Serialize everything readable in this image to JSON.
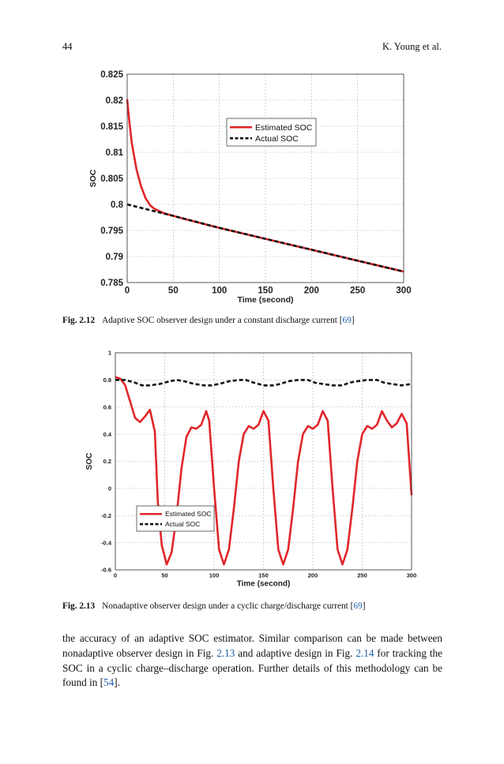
{
  "header": {
    "page_number": "44",
    "running_head": "K. Young et al."
  },
  "figures": [
    {
      "caption_label": "Fig. 2.12",
      "caption_text": "Adaptive SOC observer design under a constant discharge current [",
      "caption_ref": "69",
      "caption_end": "]"
    },
    {
      "caption_label": "Fig. 2.13",
      "caption_text": "Nonadaptive observer design under a cyclic charge/discharge current [",
      "caption_ref": "69",
      "caption_end": "]"
    }
  ],
  "chart_data": [
    {
      "type": "line",
      "xlabel": "Time (second)",
      "ylabel": "SOC",
      "xlim": [
        0,
        300
      ],
      "ylim": [
        0.785,
        0.825
      ],
      "xticks": [
        "0",
        "50",
        "100",
        "150",
        "200",
        "250",
        "300"
      ],
      "yticks": [
        "0.785",
        "0.79",
        "0.795",
        "0.8",
        "0.805",
        "0.81",
        "0.815",
        "0.82",
        "0.825"
      ],
      "grid": true,
      "legend_position": "top-right",
      "series": [
        {
          "name": "Estimated SOC",
          "color": "#e0262a",
          "style": "solid",
          "x": [
            0,
            2,
            5,
            10,
            15,
            20,
            25,
            30,
            40,
            50,
            60,
            80,
            100,
            150,
            200,
            250,
            300
          ],
          "y": [
            0.8202,
            0.8165,
            0.8118,
            0.8068,
            0.8035,
            0.8012,
            0.7998,
            0.7991,
            0.7983,
            0.7978,
            0.7973,
            0.7964,
            0.7955,
            0.7934,
            0.7913,
            0.7892,
            0.7871
          ]
        },
        {
          "name": "Actual SOC",
          "color": "#111111",
          "style": "dashed",
          "x": [
            0,
            50,
            100,
            150,
            200,
            250,
            300
          ],
          "y": [
            0.8,
            0.7978,
            0.7955,
            0.7934,
            0.7913,
            0.7892,
            0.7871
          ]
        }
      ]
    },
    {
      "type": "line",
      "xlabel": "Time (second)",
      "ylabel": "SOC",
      "xlim": [
        0,
        300
      ],
      "ylim": [
        -0.6,
        1
      ],
      "xticks": [
        "0",
        "50",
        "100",
        "150",
        "200",
        "250",
        "300"
      ],
      "yticks": [
        "-0.6",
        "-0.4",
        "-0.2",
        "0",
        "0.2",
        "0.4",
        "0.6",
        "0.8",
        "1"
      ],
      "grid": true,
      "legend_position": "bottom-left",
      "series": [
        {
          "name": "Estimated SOC",
          "color": "#e0262a",
          "style": "solid",
          "x": [
            0,
            5,
            10,
            15,
            20,
            25,
            30,
            35,
            40,
            43,
            47,
            52,
            57,
            62,
            67,
            72,
            77,
            82,
            87,
            92,
            95,
            100,
            105,
            110,
            115,
            120,
            125,
            130,
            135,
            140,
            145,
            150,
            155,
            160,
            165,
            170,
            175,
            180,
            185,
            190,
            195,
            200,
            205,
            210,
            215,
            220,
            225,
            230,
            235,
            240,
            245,
            250,
            255,
            260,
            265,
            270,
            275,
            280,
            285,
            290,
            295,
            300
          ],
          "y": [
            0.82,
            0.81,
            0.76,
            0.64,
            0.52,
            0.49,
            0.53,
            0.58,
            0.42,
            -0.1,
            -0.42,
            -0.56,
            -0.47,
            -0.2,
            0.15,
            0.38,
            0.45,
            0.44,
            0.47,
            0.57,
            0.5,
            0.0,
            -0.45,
            -0.56,
            -0.45,
            -0.15,
            0.2,
            0.4,
            0.46,
            0.44,
            0.47,
            0.57,
            0.5,
            0.0,
            -0.45,
            -0.56,
            -0.45,
            -0.15,
            0.2,
            0.4,
            0.46,
            0.44,
            0.47,
            0.57,
            0.5,
            0.0,
            -0.45,
            -0.56,
            -0.45,
            -0.15,
            0.2,
            0.4,
            0.46,
            0.44,
            0.47,
            0.57,
            0.5,
            0.45,
            0.48,
            0.55,
            0.48,
            -0.05
          ]
        },
        {
          "name": "Actual SOC",
          "color": "#111111",
          "style": "dashed",
          "x": [
            0,
            10,
            20,
            27,
            35,
            45,
            55,
            62,
            70,
            80,
            90,
            97,
            105,
            115,
            125,
            132,
            140,
            150,
            160,
            167,
            175,
            185,
            195,
            202,
            210,
            220,
            230,
            237,
            245,
            255,
            265,
            272,
            280,
            290,
            300
          ],
          "y": [
            0.8,
            0.8,
            0.78,
            0.76,
            0.76,
            0.77,
            0.79,
            0.8,
            0.79,
            0.77,
            0.76,
            0.76,
            0.77,
            0.79,
            0.8,
            0.8,
            0.78,
            0.76,
            0.76,
            0.77,
            0.79,
            0.8,
            0.8,
            0.78,
            0.77,
            0.76,
            0.76,
            0.78,
            0.79,
            0.8,
            0.8,
            0.78,
            0.77,
            0.76,
            0.77
          ]
        }
      ]
    }
  ],
  "body": {
    "p1": "the accuracy of an adaptive SOC estimator. Similar comparison can be made between nonadaptive observer design in Fig. ",
    "ref1": "2.13",
    "p2": " and adaptive design in Fig. ",
    "ref2": "2.14",
    "p3": " for tracking the SOC in a cyclic charge–discharge operation. Further details of this methodology can be found in [",
    "ref3": "54",
    "p4": "]."
  }
}
